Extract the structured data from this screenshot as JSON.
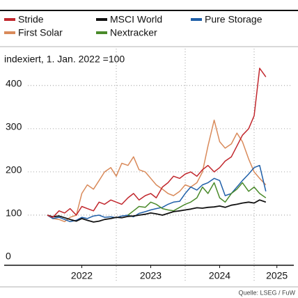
{
  "chart_data": {
    "type": "line",
    "subtitle": "indexiert, 1. Jan. 2022 =100",
    "source": "Quelle: LSEG / FuW",
    "x": [
      2022.0,
      2022.08,
      2022.17,
      2022.25,
      2022.33,
      2022.42,
      2022.5,
      2022.58,
      2022.67,
      2022.75,
      2022.83,
      2022.92,
      2023.0,
      2023.08,
      2023.17,
      2023.25,
      2023.33,
      2023.42,
      2023.5,
      2023.58,
      2023.67,
      2023.75,
      2023.83,
      2023.92,
      2024.0,
      2024.08,
      2024.17,
      2024.25,
      2024.33,
      2024.42,
      2024.5,
      2024.58,
      2024.67,
      2024.75,
      2024.83,
      2024.92,
      2025.0,
      2025.08,
      2025.17
    ],
    "series": [
      {
        "name": "Stride",
        "color": "#c1272d",
        "values": [
          100,
          95,
          110,
          105,
          115,
          100,
          120,
          115,
          110,
          130,
          125,
          135,
          130,
          125,
          140,
          150,
          135,
          145,
          150,
          140,
          165,
          175,
          190,
          185,
          195,
          200,
          190,
          205,
          215,
          200,
          210,
          225,
          235,
          260,
          285,
          300,
          330,
          440,
          420
        ]
      },
      {
        "name": "MSCI World",
        "color": "#111111",
        "values": [
          100,
          96,
          98,
          94,
          90,
          86,
          92,
          88,
          84,
          86,
          90,
          92,
          95,
          94,
          97,
          98,
          100,
          102,
          105,
          103,
          100,
          104,
          108,
          110,
          112,
          114,
          117,
          116,
          118,
          119,
          121,
          118,
          123,
          125,
          128,
          130,
          128,
          135,
          130
        ]
      },
      {
        "name": "Pure Storage",
        "color": "#1f5fa8",
        "values": [
          100,
          92,
          95,
          90,
          85,
          88,
          95,
          92,
          98,
          100,
          95,
          96,
          94,
          98,
          100,
          96,
          104,
          108,
          112,
          115,
          118,
          125,
          130,
          132,
          150,
          165,
          158,
          170,
          175,
          185,
          180,
          145,
          150,
          165,
          180,
          195,
          210,
          215,
          155
        ]
      },
      {
        "name": "First Solar",
        "color": "#d98a5a",
        "values": [
          100,
          92,
          90,
          85,
          95,
          100,
          150,
          170,
          160,
          180,
          200,
          210,
          190,
          220,
          215,
          235,
          205,
          200,
          185,
          170,
          160,
          150,
          145,
          155,
          170,
          165,
          175,
          200,
          260,
          320,
          270,
          255,
          265,
          290,
          270,
          230,
          200,
          185,
          170
        ]
      },
      {
        "name": "Nextracker",
        "color": "#4a8a2a",
        "values": [
          null,
          null,
          null,
          null,
          null,
          null,
          null,
          null,
          null,
          null,
          null,
          null,
          null,
          null,
          100,
          110,
          120,
          118,
          130,
          125,
          115,
          112,
          110,
          118,
          125,
          130,
          140,
          165,
          150,
          175,
          140,
          130,
          150,
          160,
          175,
          155,
          165,
          150,
          140
        ]
      }
    ],
    "xlim": [
      2021.95,
      2025.5
    ],
    "xticks": [
      {
        "value": 2022.5,
        "label": "2022"
      },
      {
        "value": 2023.5,
        "label": "2023"
      },
      {
        "value": 2024.5,
        "label": "2024"
      },
      {
        "value": 2025.33,
        "label": "2025"
      }
    ],
    "xgrid": [
      2023,
      2024,
      2025
    ],
    "ylim": [
      0,
      440
    ],
    "yticks": [
      0,
      100,
      200,
      300,
      400
    ],
    "grid": true
  }
}
